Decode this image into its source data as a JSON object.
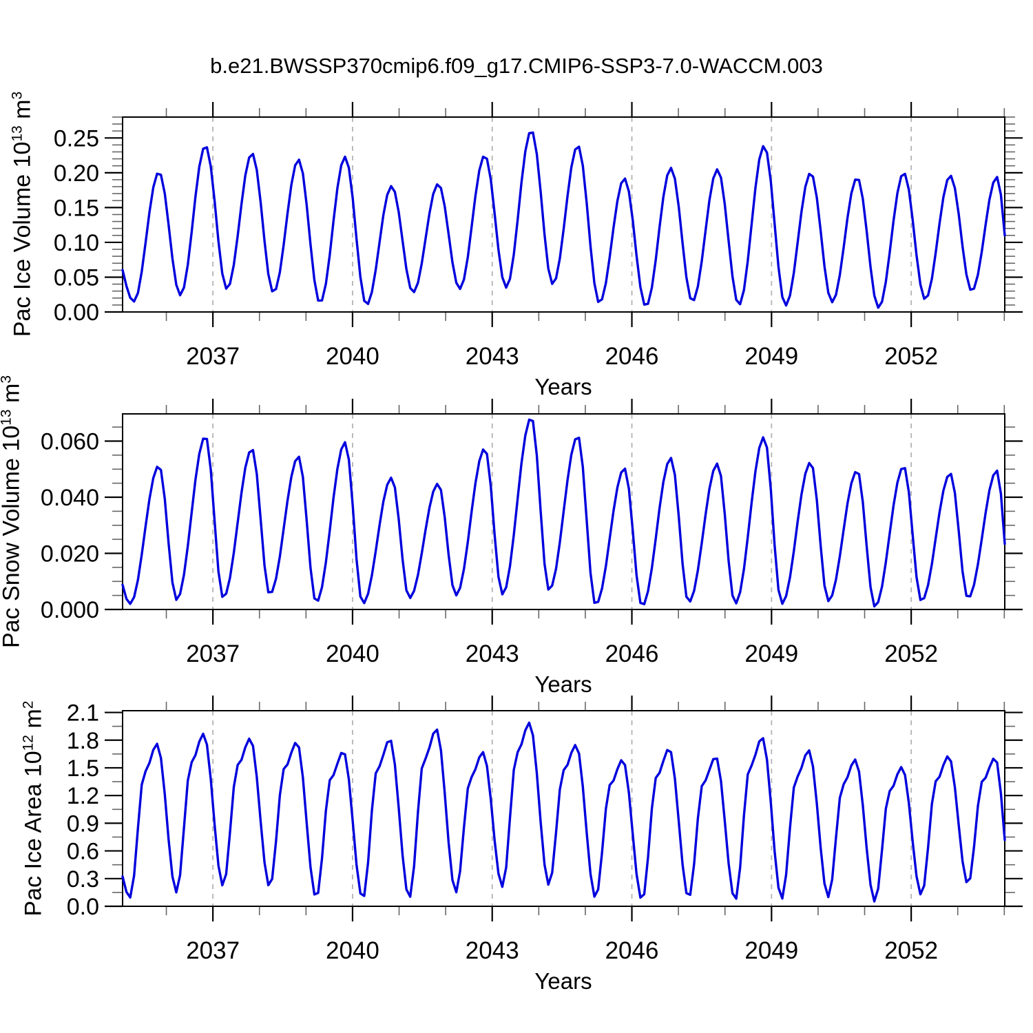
{
  "title": "b.e21.BWSSP370cmip6.f09_g17.CMIP6-SSP3-7.0-WACCM.003",
  "colors": {
    "line": "#0000dd",
    "grid": "#b3b3b3",
    "axis": "#000000",
    "minor_tick": "#666666",
    "text": "#000000",
    "background": "#ffffff"
  },
  "panels": [
    {
      "name": "pac-ice-volume",
      "ylabel_main": "Pac Ice Volume 10",
      "ylabel_sup1": "13",
      "ylabel_mid": " m",
      "ylabel_sup2": "3",
      "xlabel": "Years"
    },
    {
      "name": "pac-snow-volume",
      "ylabel_main": "Pac Snow Volume 10",
      "ylabel_sup1": "13",
      "ylabel_mid": " m",
      "ylabel_sup2": "3",
      "xlabel": "Years"
    },
    {
      "name": "pac-ice-area",
      "ylabel_main": "Pac Ice Area 10",
      "ylabel_sup1": "12",
      "ylabel_mid": " m",
      "ylabel_sup2": "2",
      "xlabel": "Years"
    }
  ],
  "chart_data": [
    {
      "type": "line",
      "name": "Pac Ice Volume",
      "ylabel": "Pac Ice Volume 10¹³ m³",
      "xlabel": "Years",
      "color": "#0000dd",
      "xlim": [
        2035.06,
        2054.01
      ],
      "ylim": [
        0,
        0.28
      ],
      "ytick_step": 0.05,
      "ytick_decimals": 2,
      "yminor_step": 0.01,
      "x_axis": {
        "major_ticks": [
          2037,
          2040,
          2043,
          2046,
          2049,
          2052
        ],
        "minor_tick_years": [
          2036,
          2054
        ],
        "grid_years": [
          2037,
          2040,
          2043,
          2046,
          2049,
          2052
        ]
      },
      "grid": true,
      "legend": "none",
      "seasonal": {
        "years": [
          2035,
          2036,
          2037,
          2038,
          2039,
          2040,
          2041,
          2042,
          2043,
          2044,
          2045,
          2046,
          2047,
          2048,
          2049,
          2050,
          2051,
          2052,
          2053
        ],
        "peaks": [
          0.201,
          0.239,
          0.228,
          0.219,
          0.223,
          0.181,
          0.184,
          0.225,
          0.261,
          0.239,
          0.192,
          0.207,
          0.205,
          0.239,
          0.2,
          0.193,
          0.2,
          0.196,
          0.194
        ],
        "troughs": [
          0.015,
          0.024,
          0.033,
          0.028,
          0.013,
          0.01,
          0.028,
          0.033,
          0.035,
          0.04,
          0.013,
          0.008,
          0.015,
          0.01,
          0.009,
          0.014,
          0.006,
          0.018,
          0.03
        ],
        "trough_phase": 0.3,
        "peak_phase": 0.84,
        "pre_year": 2034.84,
        "pre_peak": 0.1,
        "post_year": 2054.2,
        "post_trough": 0.01
      }
    },
    {
      "type": "line",
      "name": "Pac Snow Volume",
      "ylabel": "Pac Snow Volume 10¹³ m³",
      "xlabel": "Years",
      "color": "#0000dd",
      "xlim": [
        2035.06,
        2054.01
      ],
      "ylim": [
        0,
        0.0697
      ],
      "ytick_step": 0.02,
      "ytick_decimals": 3,
      "yminor_step": 0.005,
      "x_axis": {
        "major_ticks": [
          2037,
          2040,
          2043,
          2046,
          2049,
          2052
        ],
        "minor_tick_years": [
          2036,
          2054
        ],
        "grid_years": [
          2037,
          2040,
          2043,
          2046,
          2049,
          2052
        ]
      },
      "grid": true,
      "legend": "none",
      "seasonal": {
        "years": [
          2035,
          2036,
          2037,
          2038,
          2039,
          2040,
          2041,
          2042,
          2043,
          2044,
          2045,
          2046,
          2047,
          2048,
          2049,
          2050,
          2051,
          2052,
          2053
        ],
        "peaks": [
          0.0513,
          0.0618,
          0.0572,
          0.0545,
          0.0596,
          0.047,
          0.0449,
          0.0574,
          0.0685,
          0.0618,
          0.0503,
          0.054,
          0.052,
          0.0615,
          0.0525,
          0.0495,
          0.051,
          0.0485,
          0.0495
        ],
        "troughs": [
          0.002,
          0.0034,
          0.0042,
          0.0054,
          0.0025,
          0.002,
          0.004,
          0.005,
          0.0054,
          0.0069,
          0.0017,
          0.0012,
          0.0025,
          0.002,
          0.002,
          0.003,
          0.001,
          0.003,
          0.004
        ],
        "trough_phase": 0.22,
        "peak_phase": 0.84,
        "pre_year": 2034.84,
        "pre_peak": 0.02,
        "post_year": 2054.16,
        "post_trough": 0.002
      }
    },
    {
      "type": "line",
      "name": "Pac Ice Area",
      "ylabel": "Pac Ice Area 10¹² m²",
      "xlabel": "Years",
      "color": "#0000dd",
      "xlim": [
        2035.06,
        2054.01
      ],
      "ylim": [
        0,
        2.119
      ],
      "ytick_step": 0.3,
      "ytick_decimals": 1,
      "yminor_step": 0.15,
      "x_axis": {
        "major_ticks": [
          2037,
          2040,
          2043,
          2046,
          2049,
          2052
        ],
        "minor_tick_years": [
          2036,
          2054
        ],
        "grid_years": [
          2037,
          2040,
          2043,
          2046,
          2049,
          2052
        ]
      },
      "grid": true,
      "legend": "none",
      "seasonal": {
        "years": [
          2035,
          2036,
          2037,
          2038,
          2039,
          2040,
          2041,
          2042,
          2043,
          2044,
          2045,
          2046,
          2047,
          2048,
          2049,
          2050,
          2051,
          2052,
          2053
        ],
        "peaks": [
          1.76,
          1.87,
          1.82,
          1.78,
          1.68,
          1.81,
          1.92,
          1.67,
          1.99,
          1.75,
          1.59,
          1.71,
          1.62,
          1.83,
          1.69,
          1.59,
          1.51,
          1.63,
          1.61
        ],
        "troughs": [
          0.095,
          0.15,
          0.22,
          0.21,
          0.09,
          0.08,
          0.09,
          0.15,
          0.21,
          0.23,
          0.09,
          0.065,
          0.09,
          0.065,
          0.08,
          0.1,
          0.05,
          0.12,
          0.24
        ],
        "trough_phase": 0.22,
        "peak_phase": 0.8,
        "shoulder_frac": [
          0.55,
          0.82
        ],
        "pre_year": 2034.84,
        "pre_peak": 0.7,
        "post_year": 2054.18,
        "post_trough": 0.08
      }
    }
  ]
}
